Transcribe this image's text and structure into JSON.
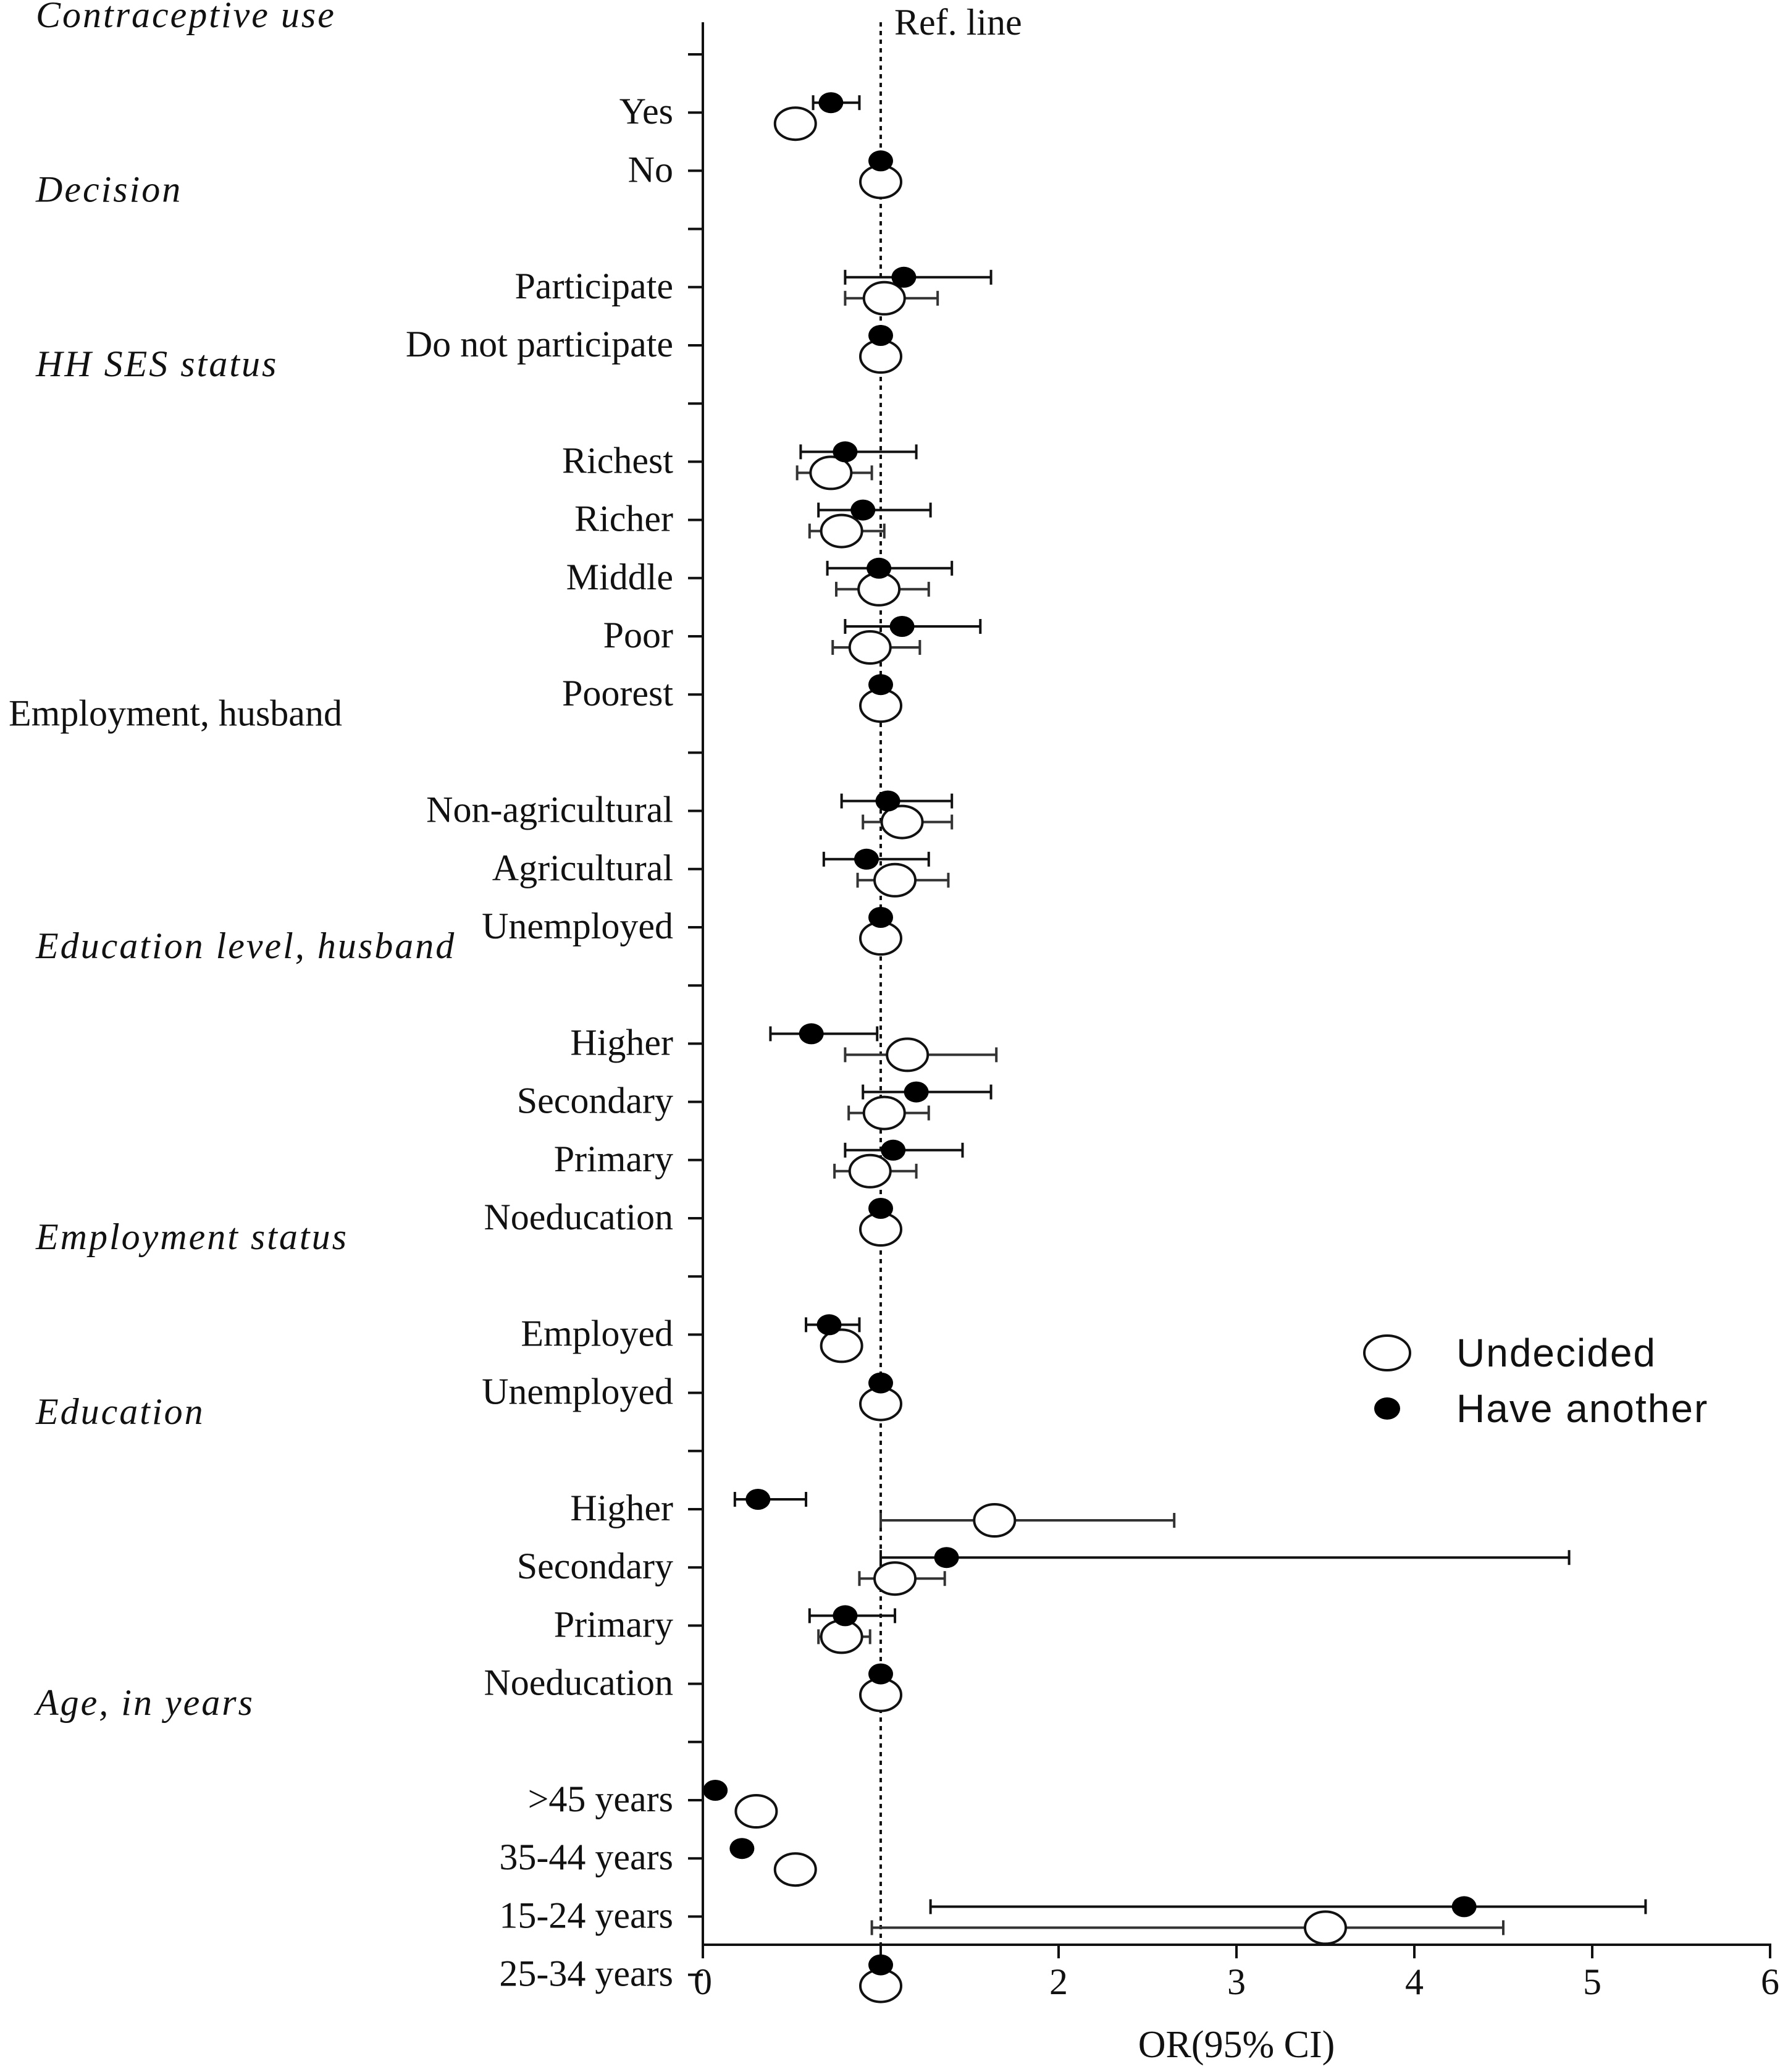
{
  "chart_data": {
    "type": "forest",
    "xlabel": "OR(95% CI)",
    "xlim": [
      0,
      6
    ],
    "xticks": [
      "0",
      "1",
      "2",
      "3",
      "4",
      "5",
      "6"
    ],
    "reference_line": {
      "value": 1,
      "label": "Ref. line"
    },
    "legend": {
      "placement": "right",
      "entries": [
        {
          "name": "Undecided",
          "marker": "open-circle"
        },
        {
          "name": "Have another",
          "marker": "filled-circle"
        }
      ]
    },
    "groups": [
      {
        "header": "Contraceptive use",
        "italic": true,
        "rows": [
          {
            "label": "Yes",
            "have_another": {
              "or": 0.72,
              "lo": 0.62,
              "hi": 0.88
            },
            "undecided": {
              "or": 0.52,
              "lo": 0.5,
              "hi": 0.56
            }
          },
          {
            "label": "No",
            "have_another": {
              "or": 1.0
            },
            "undecided": {
              "or": 1.0
            }
          }
        ]
      },
      {
        "header": "Decision",
        "italic": true,
        "rows": [
          {
            "label": "Participate",
            "have_another": {
              "or": 1.13,
              "lo": 0.8,
              "hi": 1.62
            },
            "undecided": {
              "or": 1.02,
              "lo": 0.8,
              "hi": 1.32
            }
          },
          {
            "label": "Do not participate",
            "have_another": {
              "or": 1.0
            },
            "undecided": {
              "or": 1.0
            }
          }
        ]
      },
      {
        "header": "HH SES status",
        "italic": true,
        "rows": [
          {
            "label": "Richest",
            "have_another": {
              "or": 0.8,
              "lo": 0.55,
              "hi": 1.2
            },
            "undecided": {
              "or": 0.72,
              "lo": 0.53,
              "hi": 0.95
            }
          },
          {
            "label": "Richer",
            "have_another": {
              "or": 0.9,
              "lo": 0.65,
              "hi": 1.28
            },
            "undecided": {
              "or": 0.78,
              "lo": 0.6,
              "hi": 1.02
            }
          },
          {
            "label": "Middle",
            "have_another": {
              "or": 0.99,
              "lo": 0.7,
              "hi": 1.4
            },
            "undecided": {
              "or": 0.99,
              "lo": 0.75,
              "hi": 1.27
            }
          },
          {
            "label": "Poor",
            "have_another": {
              "or": 1.12,
              "lo": 0.8,
              "hi": 1.56
            },
            "undecided": {
              "or": 0.94,
              "lo": 0.73,
              "hi": 1.22
            }
          },
          {
            "label": "Poorest",
            "have_another": {
              "or": 1.0
            },
            "undecided": {
              "or": 1.0
            }
          }
        ]
      },
      {
        "header": "Employment, husband",
        "italic": false,
        "rows": [
          {
            "label": "Non-agricultural",
            "have_another": {
              "or": 1.04,
              "lo": 0.78,
              "hi": 1.4
            },
            "undecided": {
              "or": 1.12,
              "lo": 0.9,
              "hi": 1.4
            }
          },
          {
            "label": "Agricultural",
            "have_another": {
              "or": 0.92,
              "lo": 0.68,
              "hi": 1.27
            },
            "undecided": {
              "or": 1.08,
              "lo": 0.87,
              "hi": 1.38
            }
          },
          {
            "label": "Unemployed",
            "have_another": {
              "or": 1.0
            },
            "undecided": {
              "or": 1.0
            }
          }
        ]
      },
      {
        "header": "Education level, husband",
        "italic": true,
        "rows": [
          {
            "label": "Higher",
            "have_another": {
              "or": 0.61,
              "lo": 0.38,
              "hi": 0.98
            },
            "undecided": {
              "or": 1.15,
              "lo": 0.8,
              "hi": 1.65
            }
          },
          {
            "label": "Secondary",
            "have_another": {
              "or": 1.2,
              "lo": 0.9,
              "hi": 1.62
            },
            "undecided": {
              "or": 1.02,
              "lo": 0.82,
              "hi": 1.27
            }
          },
          {
            "label": "Primary",
            "have_another": {
              "or": 1.07,
              "lo": 0.8,
              "hi": 1.46
            },
            "undecided": {
              "or": 0.94,
              "lo": 0.74,
              "hi": 1.2
            }
          },
          {
            "label": "Noeducation",
            "have_another": {
              "or": 1.0
            },
            "undecided": {
              "or": 1.0
            }
          }
        ]
      },
      {
        "header": "Employment status",
        "italic": true,
        "rows": [
          {
            "label": "Employed",
            "have_another": {
              "or": 0.71,
              "lo": 0.58,
              "hi": 0.88
            },
            "undecided": {
              "or": 0.78,
              "lo": 0.68,
              "hi": 0.88
            }
          },
          {
            "label": "Unemployed",
            "have_another": {
              "or": 1.0
            },
            "undecided": {
              "or": 1.0
            }
          }
        ]
      },
      {
        "header": "Education",
        "italic": true,
        "rows": [
          {
            "label": "Higher",
            "have_another": {
              "or": 0.31,
              "lo": 0.18,
              "hi": 0.58
            },
            "undecided": {
              "or": 1.64,
              "lo": 1.0,
              "hi": 2.65
            }
          },
          {
            "label": "Secondary",
            "have_another": {
              "or": 1.37,
              "lo": 1.0,
              "hi": 4.87
            },
            "undecided": {
              "or": 1.08,
              "lo": 0.88,
              "hi": 1.36
            }
          },
          {
            "label": "Primary",
            "have_another": {
              "or": 0.8,
              "lo": 0.6,
              "hi": 1.08
            },
            "undecided": {
              "or": 0.78,
              "lo": 0.65,
              "hi": 0.94
            }
          },
          {
            "label": "Noeducation",
            "have_another": {
              "or": 1.0
            },
            "undecided": {
              "or": 1.0
            }
          }
        ]
      },
      {
        "header": "Age, in years",
        "italic": true,
        "rows": [
          {
            "label": ">45 years",
            "have_another": {
              "or": 0.07
            },
            "undecided": {
              "or": 0.3
            }
          },
          {
            "label": "35-44 years",
            "have_another": {
              "or": 0.22
            },
            "undecided": {
              "or": 0.52
            }
          },
          {
            "label": "15-24 years",
            "have_another": {
              "or": 4.28,
              "lo": 1.28,
              "hi": 5.3
            },
            "undecided": {
              "or": 3.5,
              "lo": 0.95,
              "hi": 4.5
            }
          },
          {
            "label": "25-34 years",
            "have_another": {
              "or": 1.0
            },
            "undecided": {
              "or": 1.0
            }
          }
        ]
      }
    ]
  }
}
